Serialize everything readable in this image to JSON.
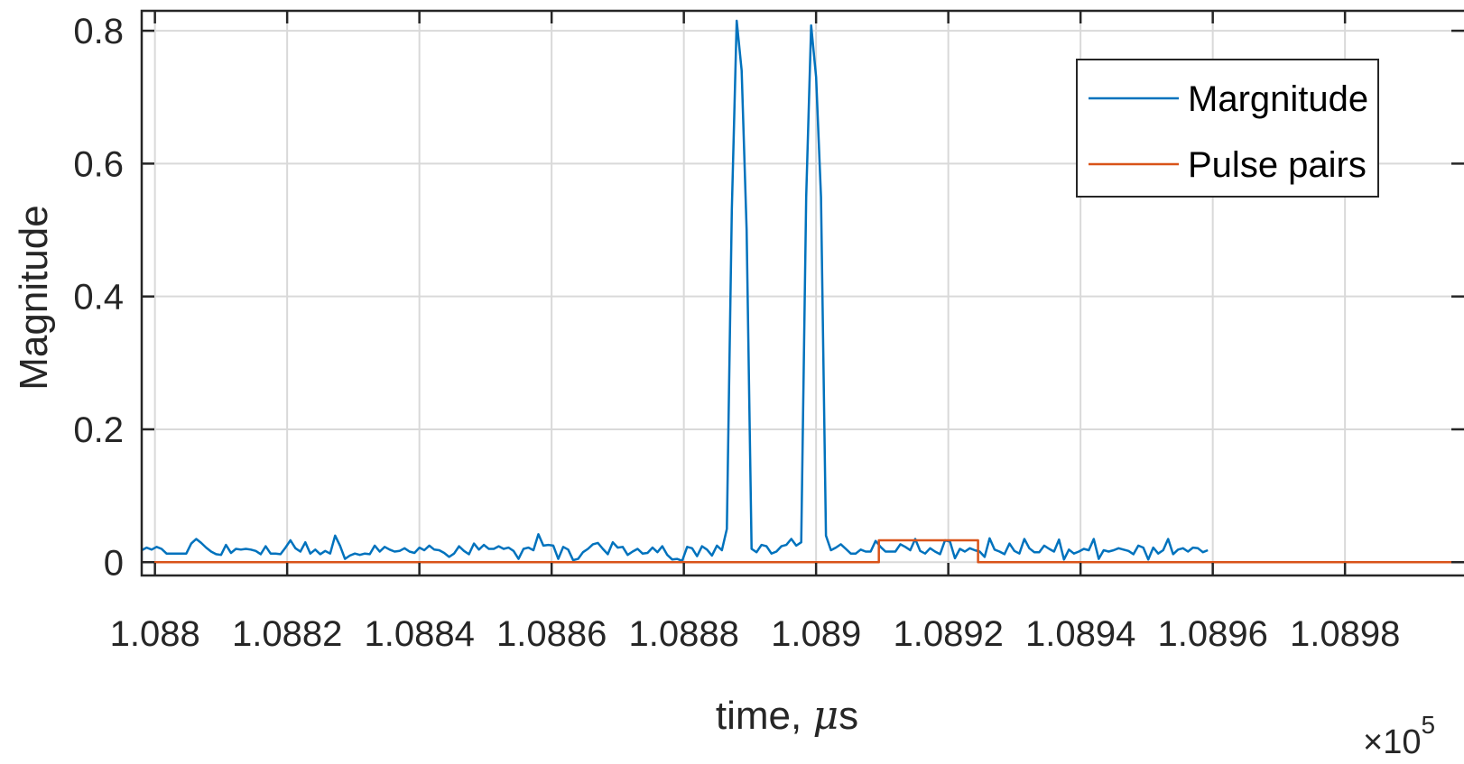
{
  "chart_data": {
    "type": "line",
    "xlabel_prefix": "time, ",
    "xlabel_mu": "μ",
    "xlabel_suffix": "s",
    "ylabel": "Magnitude",
    "x_multiplier": "×10",
    "x_multiplier_exp": "5",
    "xlim": [
      1.08798,
      1.08998
    ],
    "ylim": [
      -0.02,
      0.83
    ],
    "x_ticks": [
      1.088,
      1.0882,
      1.0884,
      1.0886,
      1.0888,
      1.089,
      1.0892,
      1.0894,
      1.0896,
      1.0898
    ],
    "x_tick_labels": [
      "1.088",
      "1.0882",
      "1.0884",
      "1.0886",
      "1.0888",
      "1.089",
      "1.0892",
      "1.0894",
      "1.0896",
      "1.0898"
    ],
    "y_ticks": [
      0,
      0.2,
      0.4,
      0.6,
      0.8
    ],
    "y_tick_labels": [
      "0",
      "0.2",
      "0.4",
      "0.6",
      "0.8"
    ],
    "grid": true,
    "legend_position": "top-right",
    "series": [
      {
        "name": "Margnitude",
        "color": "#0072BD",
        "x_start": 1.08798,
        "x_step": 7.5e-06,
        "values": [
          0.018,
          0.022,
          0.019,
          0.023,
          0.02,
          0.013,
          0.013,
          0.013,
          0.013,
          0.013,
          0.028,
          0.035,
          0.029,
          0.022,
          0.016,
          0.012,
          0.011,
          0.026,
          0.014,
          0.02,
          0.019,
          0.02,
          0.019,
          0.017,
          0.012,
          0.024,
          0.013,
          0.013,
          0.012,
          0.022,
          0.033,
          0.021,
          0.016,
          0.03,
          0.013,
          0.019,
          0.012,
          0.017,
          0.013,
          0.04,
          0.025,
          0.005,
          0.01,
          0.013,
          0.011,
          0.013,
          0.012,
          0.025,
          0.016,
          0.023,
          0.019,
          0.016,
          0.017,
          0.021,
          0.016,
          0.014,
          0.022,
          0.018,
          0.025,
          0.019,
          0.018,
          0.014,
          0.008,
          0.013,
          0.024,
          0.017,
          0.012,
          0.028,
          0.019,
          0.026,
          0.02,
          0.02,
          0.024,
          0.02,
          0.022,
          0.017,
          0.005,
          0.02,
          0.022,
          0.018,
          0.042,
          0.025,
          0.026,
          0.025,
          0.005,
          0.023,
          0.019,
          0.003,
          0.005,
          0.015,
          0.02,
          0.027,
          0.029,
          0.02,
          0.012,
          0.03,
          0.022,
          0.023,
          0.011,
          0.016,
          0.02,
          0.013,
          0.014,
          0.022,
          0.015,
          0.024,
          0.011,
          0.004,
          0.005,
          0.002,
          0.023,
          0.021,
          0.009,
          0.024,
          0.019,
          0.01,
          0.025,
          0.018,
          0.05,
          0.53,
          0.815,
          0.74,
          0.5,
          0.02,
          0.015,
          0.026,
          0.024,
          0.013,
          0.016,
          0.024,
          0.026,
          0.035,
          0.025,
          0.03,
          0.55,
          0.808,
          0.73,
          0.55,
          0.04,
          0.018,
          0.022,
          0.027,
          0.02,
          0.013,
          0.013,
          0.019,
          0.016,
          0.016,
          0.032,
          0.023,
          0.016,
          0.016,
          0.016,
          0.027,
          0.023,
          0.018,
          0.035,
          0.017,
          0.013,
          0.021,
          0.016,
          0.012,
          0.033,
          0.031,
          0.006,
          0.02,
          0.016,
          0.021,
          0.018,
          0.016,
          0.008,
          0.036,
          0.019,
          0.016,
          0.012,
          0.028,
          0.017,
          0.013,
          0.035,
          0.021,
          0.015,
          0.015,
          0.025,
          0.02,
          0.016,
          0.034,
          0.004,
          0.019,
          0.013,
          0.016,
          0.02,
          0.018,
          0.035,
          0.005,
          0.018,
          0.016,
          0.018,
          0.021,
          0.019,
          0.017,
          0.012,
          0.025,
          0.022,
          0.004,
          0.022,
          0.013,
          0.018,
          0.035,
          0.012,
          0.019,
          0.021,
          0.016,
          0.022,
          0.021,
          0.015,
          0.018
        ]
      },
      {
        "name": "Pulse pairs",
        "color": "#D95319",
        "points": [
          [
            1.08798,
            0
          ],
          [
            1.089095,
            0
          ],
          [
            1.089095,
            0.033
          ],
          [
            1.089245,
            0.033
          ],
          [
            1.089245,
            0
          ],
          [
            1.08998,
            0
          ]
        ]
      }
    ]
  }
}
